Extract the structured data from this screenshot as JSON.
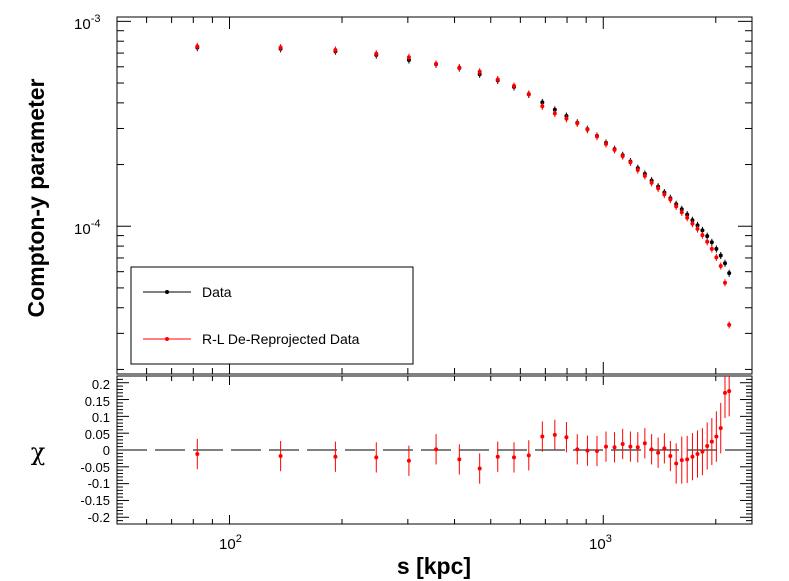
{
  "chart_data": [
    {
      "type": "scatter",
      "panel": "top",
      "xscale": "log",
      "yscale": "log",
      "xlim": [
        50,
        2500
      ],
      "ylim": [
        1.9e-05,
        0.00105
      ],
      "ylabel": "Compton-y parameter",
      "xlabel": "s [kpc]",
      "yticks": [
        {
          "base": "10",
          "exp": "-3",
          "value": 0.001
        },
        {
          "base": "10",
          "exp": "-4",
          "value": 0.0001
        }
      ],
      "legend": {
        "position": "lower-left",
        "entries": [
          "Data",
          "R-L De-Reprojected Data"
        ]
      },
      "series": [
        {
          "name": "Data",
          "color": "#000000",
          "x": [
            82,
            137,
            192,
            247,
            302,
            357,
            412,
            467,
            522,
            577,
            632,
            687,
            742,
            797,
            852,
            907,
            962,
            1017,
            1072,
            1127,
            1182,
            1237,
            1292,
            1347,
            1402,
            1457,
            1512,
            1567,
            1622,
            1677,
            1732,
            1787,
            1842,
            1897,
            1952,
            2007,
            2062,
            2117,
            2172
          ],
          "y": [
            0.000745,
            0.000735,
            0.000715,
            0.000685,
            0.000648,
            0.000617,
            0.000592,
            0.000552,
            0.000515,
            0.000478,
            0.00044,
            0.000402,
            0.00037,
            0.000345,
            0.00032,
            0.000298,
            0.000276,
            0.000255,
            0.000238,
            0.000222,
            0.000207,
            0.000192,
            0.00018,
            0.000167,
            0.000156,
            0.000146,
            0.000137,
            0.000128,
            0.000121,
            0.000114,
            0.000107,
            0.000101,
            9.55e-05,
            8.95e-05,
            8.35e-05,
            7.75e-05,
            7.2e-05,
            6.6e-05,
            5.9e-05
          ],
          "yerr_frac": 0.04
        },
        {
          "name": "R-L De-Reprojected Data",
          "color": "#ff0000",
          "x": [
            82,
            137,
            192,
            247,
            302,
            357,
            412,
            467,
            522,
            577,
            632,
            687,
            742,
            797,
            852,
            907,
            962,
            1017,
            1072,
            1127,
            1182,
            1237,
            1292,
            1347,
            1402,
            1457,
            1512,
            1567,
            1622,
            1677,
            1732,
            1787,
            1842,
            1897,
            1952,
            2007,
            2062,
            2117,
            2172
          ],
          "y": [
            0.000755,
            0.000745,
            0.000725,
            0.000695,
            0.000668,
            0.00062,
            0.000595,
            0.000568,
            0.00052,
            0.000484,
            0.000442,
            0.000385,
            0.000355,
            0.000335,
            0.000318,
            0.000296,
            0.000274,
            0.000252,
            0.000236,
            0.00022,
            0.000205,
            0.000188,
            0.000176,
            0.000163,
            0.000153,
            0.000143,
            0.000135,
            0.000125,
            0.000117,
            0.00011,
            0.000103,
            9.7e-05,
            9.05e-05,
            8.4e-05,
            7.75e-05,
            7.05e-05,
            6.4e-05,
            5.3e-05,
            3.3e-05
          ],
          "yerr_frac": 0.04
        }
      ]
    },
    {
      "type": "scatter",
      "panel": "bottom",
      "xscale": "log",
      "xlim": [
        50,
        2500
      ],
      "ylim": [
        -0.22,
        0.22
      ],
      "ylabel": "χ",
      "xlabel": "s [kpc]",
      "yticklabels": [
        "0.2",
        "0.15",
        "0.1",
        "0.05",
        "0",
        "-0.05",
        "-0.1",
        "-0.15",
        "-0.2"
      ],
      "ytickvalues": [
        0.2,
        0.15,
        0.1,
        0.05,
        0,
        -0.05,
        -0.1,
        -0.15,
        -0.2
      ],
      "xticklabels": [
        {
          "base": "10",
          "exp": "2",
          "value": 100
        },
        {
          "base": "10",
          "exp": "3",
          "value": 1000
        }
      ],
      "reference_line": 0,
      "series": [
        {
          "name": "chi",
          "color": "#ff0000",
          "x": [
            82,
            137,
            192,
            247,
            302,
            357,
            412,
            467,
            522,
            577,
            632,
            687,
            742,
            797,
            852,
            907,
            962,
            1017,
            1072,
            1127,
            1182,
            1237,
            1292,
            1347,
            1402,
            1457,
            1512,
            1567,
            1622,
            1677,
            1732,
            1787,
            1842,
            1897,
            1952,
            2007,
            2062,
            2117,
            2172
          ],
          "y": [
            -0.012,
            -0.018,
            -0.02,
            -0.022,
            -0.032,
            0.002,
            -0.028,
            -0.055,
            -0.02,
            -0.022,
            -0.016,
            0.04,
            0.045,
            0.038,
            0.002,
            -0.002,
            -0.003,
            0.01,
            0.008,
            0.018,
            0.01,
            0.008,
            0.02,
            0.002,
            -0.008,
            0.005,
            -0.018,
            -0.04,
            -0.03,
            -0.028,
            -0.02,
            -0.012,
            -0.005,
            0.012,
            0.025,
            0.04,
            0.065,
            0.17,
            0.175
          ],
          "yerr": [
            0.045,
            0.045,
            0.045,
            0.045,
            0.045,
            0.045,
            0.045,
            0.045,
            0.045,
            0.045,
            0.045,
            0.045,
            0.045,
            0.045,
            0.045,
            0.045,
            0.045,
            0.045,
            0.045,
            0.045,
            0.045,
            0.045,
            0.045,
            0.045,
            0.045,
            0.045,
            0.045,
            0.06,
            0.07,
            0.07,
            0.07,
            0.07,
            0.07,
            0.07,
            0.07,
            0.075,
            0.075,
            0.075,
            0.075
          ]
        }
      ]
    }
  ]
}
